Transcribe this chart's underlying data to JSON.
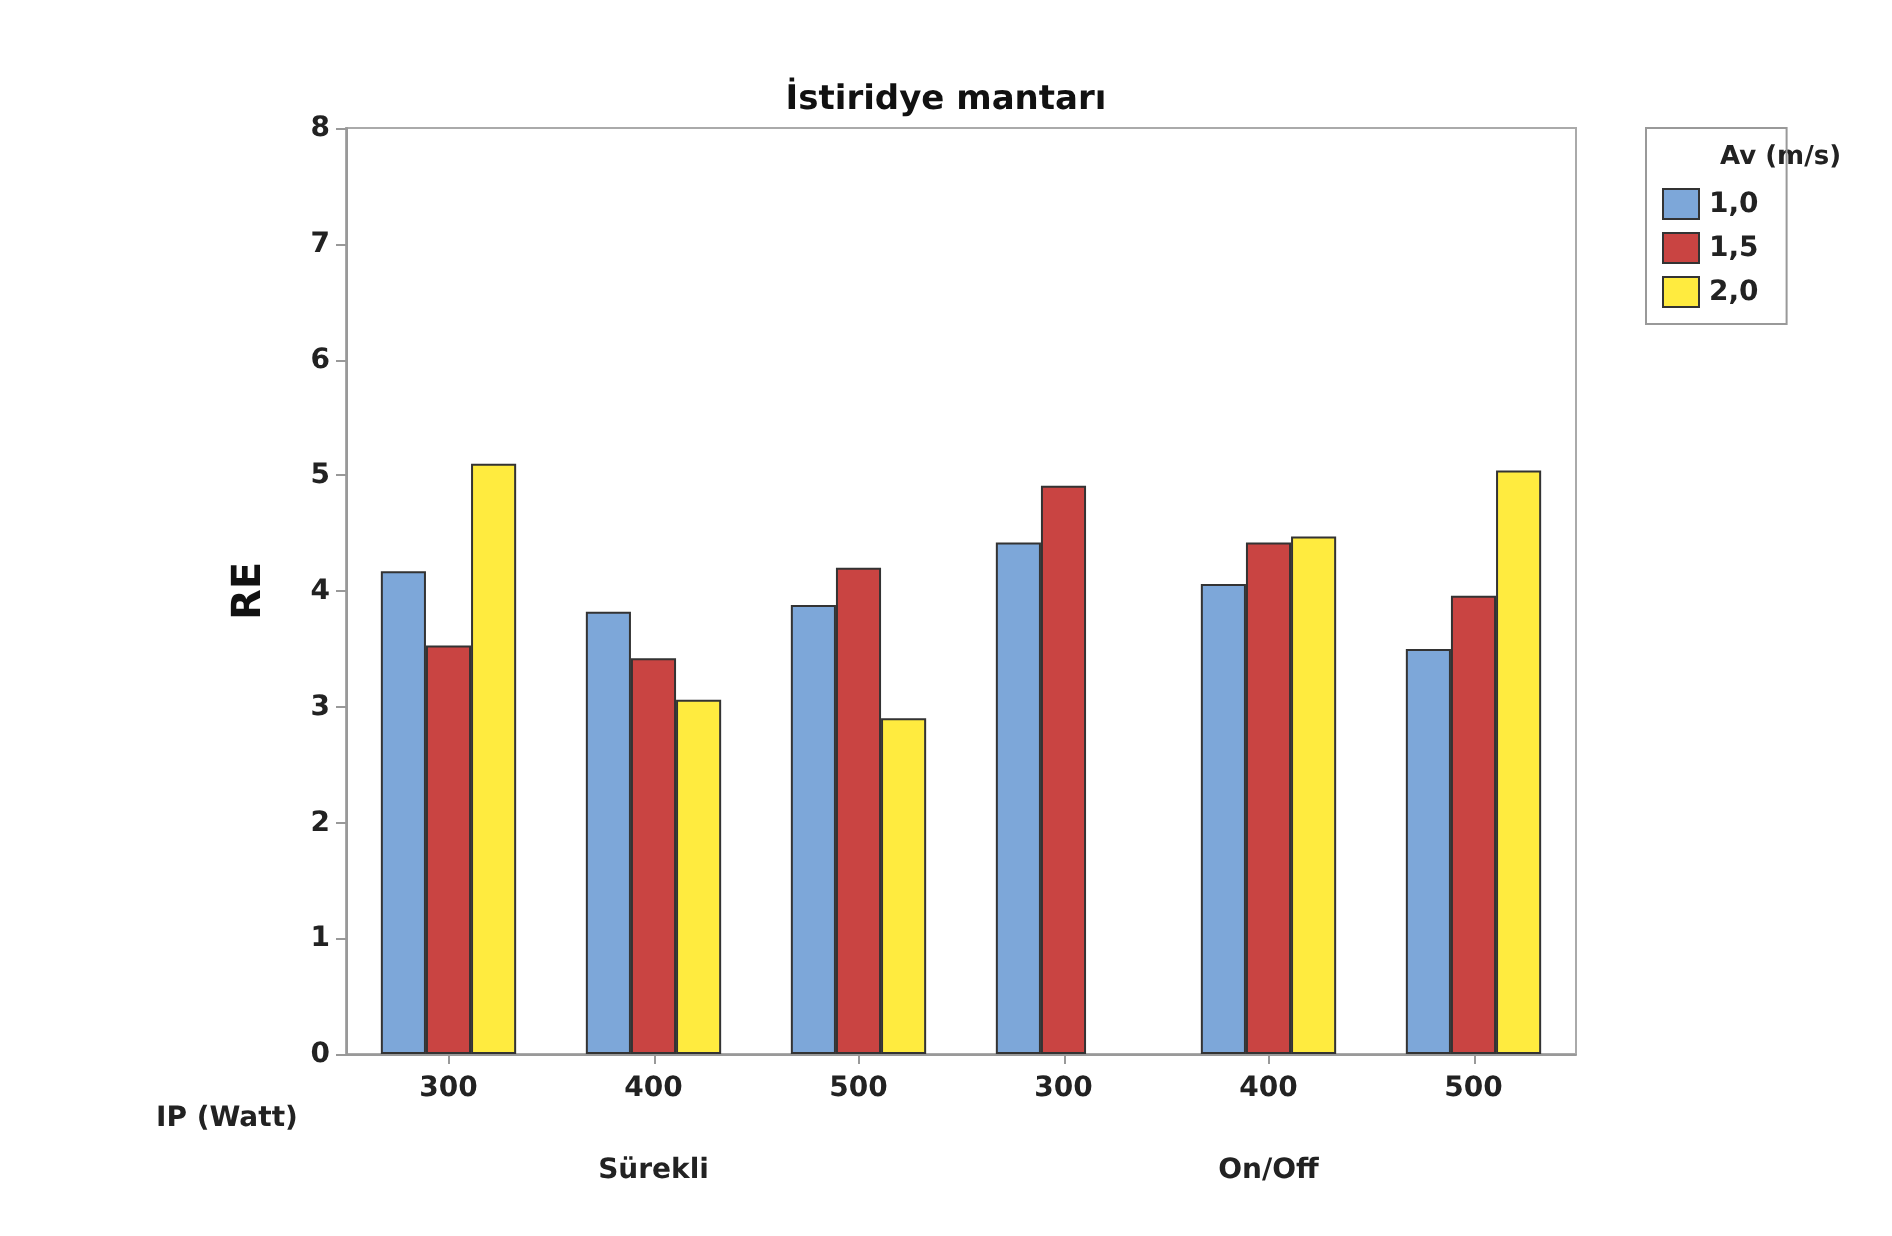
{
  "chart_data": {
    "type": "bar",
    "title": "İstiridye mantarı",
    "xlabel": "IP (Watt)",
    "ylabel": "RE",
    "legend_title": "Av (m/s)",
    "categories": [
      "300",
      "400",
      "500",
      "300",
      "400",
      "500"
    ],
    "series": [
      {
        "name": "1,0",
        "color": "#7da7d9",
        "values": [
          4.17,
          3.82,
          3.88,
          4.42,
          4.06,
          3.5
        ]
      },
      {
        "name": "1,5",
        "color": "#c94442",
        "values": [
          3.53,
          3.42,
          4.2,
          4.91,
          4.42,
          3.96
        ]
      },
      {
        "name": "2,0",
        "color": "#ffeb3f",
        "values": [
          5.1,
          3.06,
          2.9,
          null,
          4.47,
          5.04
        ]
      }
    ],
    "annotations": [
      "Sürekli",
      "On/Off"
    ],
    "ylim": [
      0,
      8
    ],
    "yticks": [
      0,
      1,
      2,
      3,
      4,
      5,
      6,
      7,
      8
    ],
    "grid": false,
    "legend": "top right"
  }
}
